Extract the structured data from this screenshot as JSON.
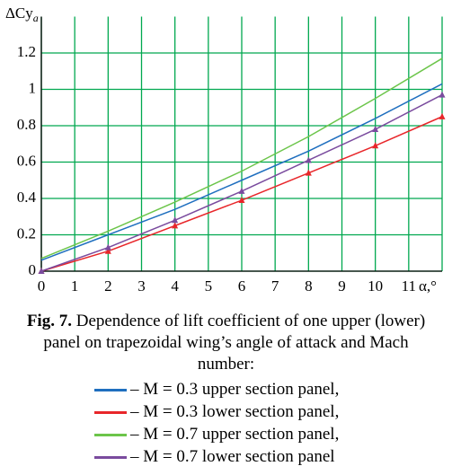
{
  "chart_data": {
    "type": "line",
    "ylabel": "ΔCy",
    "ylabel_sub": "a",
    "xlabel": "α,°",
    "caption_label": "Fig. 7.",
    "caption": "Dependence of lift coefficient of one upper (lower) panel on trapezoidal wing’s angle of attack and Mach number:",
    "x": [
      0,
      2,
      4,
      6,
      8,
      10,
      12
    ],
    "series": [
      {
        "name": "– M = 0.3 upper section panel,",
        "color": "#1f6fbf",
        "values": [
          0.06,
          0.2,
          0.34,
          0.5,
          0.66,
          0.84,
          1.03
        ]
      },
      {
        "name": "– M = 0.3 lower section panel,",
        "color": "#e8262a",
        "marker": "triangle",
        "values": [
          0,
          0.11,
          0.25,
          0.39,
          0.54,
          0.69,
          0.85
        ]
      },
      {
        "name": "– M = 0.7 upper section panel,",
        "color": "#6cc54a",
        "values": [
          0.07,
          0.22,
          0.38,
          0.55,
          0.74,
          0.95,
          1.17
        ]
      },
      {
        "name": "– M = 0.7 lower section panel",
        "color": "#7a4b9e",
        "marker": "triangle",
        "values": [
          0,
          0.13,
          0.28,
          0.44,
          0.61,
          0.78,
          0.97
        ]
      }
    ],
    "xlim": [
      0,
      12
    ],
    "ylim": [
      0,
      1.4
    ],
    "xticks": [
      0,
      1,
      2,
      3,
      4,
      5,
      6,
      7,
      8,
      9,
      10,
      11
    ],
    "yticks": [
      0,
      0.2,
      0.4,
      0.6,
      0.8,
      1,
      1.2
    ],
    "grid": true,
    "grid_color": "#00a84f"
  }
}
